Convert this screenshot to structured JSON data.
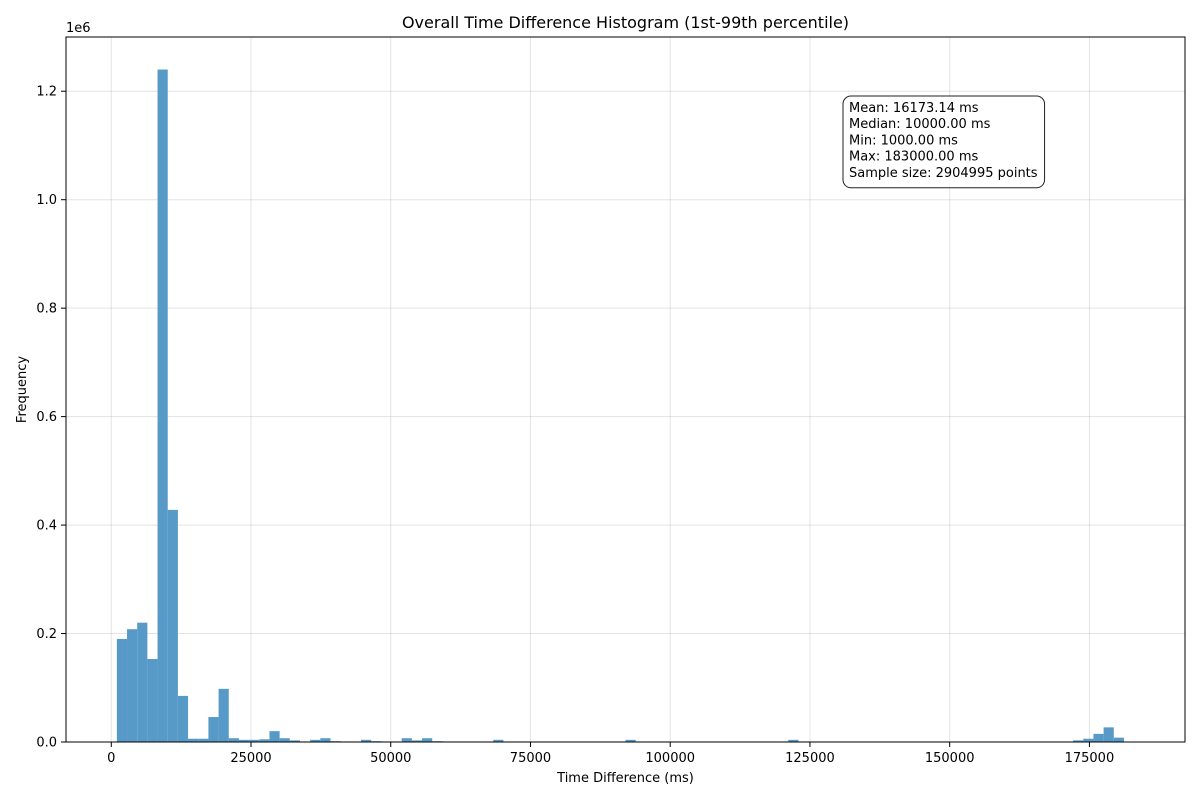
{
  "chart_data": {
    "type": "bar",
    "title": "Overall Time Difference Histogram (1st-99th percentile)",
    "xlabel": "Time Difference (ms)",
    "ylabel": "Frequency",
    "y_scale_label": "1e6",
    "xlim": [
      -8100,
      192100
    ],
    "ylim": [
      0,
      1300000
    ],
    "x_ticks": [
      0,
      25000,
      50000,
      75000,
      100000,
      125000,
      150000,
      175000
    ],
    "x_tick_labels": [
      "0",
      "25000",
      "50000",
      "75000",
      "100000",
      "125000",
      "150000",
      "175000"
    ],
    "y_ticks": [
      0,
      200000,
      400000,
      600000,
      800000,
      1000000,
      1200000
    ],
    "y_tick_labels": [
      "0.0",
      "0.2",
      "0.4",
      "0.6",
      "0.8",
      "1.0",
      "1.2"
    ],
    "grid": true,
    "bar_color": "#5799c7",
    "bins": {
      "start": 1000,
      "width": 1820,
      "counts": [
        190000,
        208000,
        220000,
        153000,
        1240000,
        428000,
        85000,
        6000,
        6000,
        46000,
        98000,
        7000,
        4000,
        4000,
        5000,
        20000,
        7000,
        3000,
        1000,
        4000,
        7000,
        1500,
        1000,
        1000,
        4000,
        1500,
        1000,
        1000,
        7000,
        3000,
        7000,
        1500,
        1000,
        1000,
        1000,
        1000,
        1000,
        4000,
        1000,
        1000,
        1000,
        1000,
        1000,
        1000,
        1000,
        1000,
        1000,
        1000,
        1000,
        1000,
        4000,
        1000,
        1000,
        1000,
        1000,
        1000,
        1000,
        1000,
        1000,
        1000,
        1000,
        1000,
        1000,
        1000,
        1000,
        1000,
        4000,
        1000,
        1000,
        1000,
        1000,
        1000,
        1000,
        1000,
        1000,
        1000,
        1000,
        1000,
        1000,
        1000,
        1000,
        1000,
        1000,
        1000,
        1000,
        1000,
        1000,
        1000,
        1000,
        1000,
        1000,
        1000,
        1000,
        1000,
        3000,
        6000,
        15000,
        27000,
        8000,
        0
      ]
    },
    "stats_box": {
      "lines": [
        "Mean: 16173.14 ms",
        "Median: 10000.00 ms",
        "Min: 1000.00 ms",
        "Max: 183000.00 ms",
        "Sample size: 2904995 points"
      ],
      "placement": "upper-right"
    }
  }
}
